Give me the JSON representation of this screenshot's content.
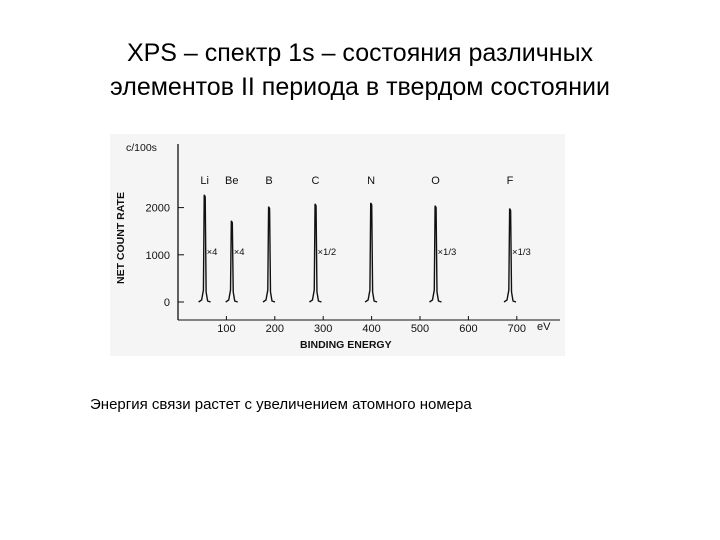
{
  "slide": {
    "title_line1": "XPS – спектр 1s – состояния различных",
    "title_line2": "элементов II периода в твердом состоянии",
    "caption": "Энергия связи растет с увеличением атомного номера"
  },
  "colors": {
    "background": "#ffffff",
    "figure_bg": "#f5f5f5",
    "ink": "#111111"
  },
  "chart_data": {
    "type": "line",
    "title": "",
    "xlabel": "BINDING ENERGY",
    "x_unit": "eV",
    "ylabel": "NET COUNT RATE",
    "y_unit": "c/100s",
    "xlim": [
      0,
      750
    ],
    "ylim": [
      0,
      2900
    ],
    "x_ticks": [
      100,
      200,
      300,
      400,
      500,
      600,
      700
    ],
    "y_ticks": [
      0,
      1000,
      2000
    ],
    "grid": false,
    "peaks": [
      {
        "element": "Li",
        "binding_energy": 55,
        "height": 2270,
        "scale": "×4"
      },
      {
        "element": "Be",
        "binding_energy": 111,
        "height": 1720,
        "scale": "×4"
      },
      {
        "element": "B",
        "binding_energy": 188,
        "height": 2020,
        "scale": ""
      },
      {
        "element": "C",
        "binding_energy": 284,
        "height": 2080,
        "scale": "×1/2"
      },
      {
        "element": "N",
        "binding_energy": 399,
        "height": 2100,
        "scale": ""
      },
      {
        "element": "O",
        "binding_energy": 532,
        "height": 2040,
        "scale": "×1/3"
      },
      {
        "element": "F",
        "binding_energy": 686,
        "height": 1980,
        "scale": "×1/3"
      }
    ]
  }
}
